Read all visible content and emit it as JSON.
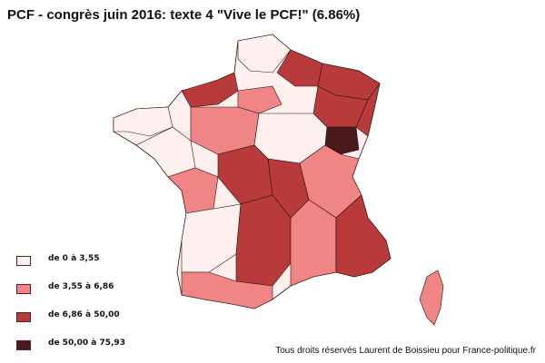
{
  "title": "PCF - congrès juin 2016: texte 4 \"Vive le PCF!\" (6.86%)",
  "legend": {
    "items": [
      {
        "label": "de 0 à 3,55",
        "color": "#fff0f0"
      },
      {
        "label": "de 3,55 à 6,86",
        "color": "#ef8585"
      },
      {
        "label": "de 6,86 à 50,00",
        "color": "#b93a3a"
      },
      {
        "label": "de 50,00 à 75,93",
        "color": "#4a1a1a"
      }
    ]
  },
  "credit": "Tous droits réservés Laurent de Boissieu pour France-politique.fr",
  "map": {
    "departments": [
      {
        "class": 0
      },
      {
        "class": 1
      },
      {
        "class": 2
      },
      {
        "class": 0
      },
      {
        "class": 1
      },
      {
        "class": 2
      },
      {
        "class": 2
      },
      {
        "class": 3
      },
      {
        "class": 1
      },
      {
        "class": 0
      },
      {
        "class": 2
      },
      {
        "class": 1
      }
    ]
  }
}
